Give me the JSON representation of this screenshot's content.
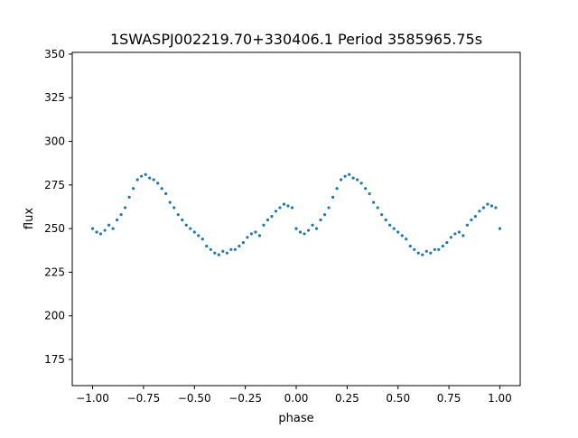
{
  "chart_data": {
    "type": "scatter",
    "title": "1SWASPJ002219.70+330406.1 Period 3585965.75s",
    "xlabel": "phase",
    "ylabel": "flux",
    "xlim": [
      -1.1,
      1.1
    ],
    "ylim": [
      160,
      351
    ],
    "xticks": [
      -1.0,
      -0.75,
      -0.5,
      -0.25,
      0.0,
      0.25,
      0.5,
      0.75,
      1.0
    ],
    "xtick_labels": [
      "−1.00",
      "−0.75",
      "−0.50",
      "−0.25",
      "0.00",
      "0.25",
      "0.50",
      "0.75",
      "1.00"
    ],
    "yticks": [
      175,
      200,
      225,
      250,
      275,
      300,
      325,
      350
    ],
    "ytick_labels": [
      "175",
      "200",
      "225",
      "250",
      "275",
      "300",
      "325",
      "350"
    ],
    "grid": false,
    "legend": "none",
    "point_color": "#1f77b4",
    "series": [
      {
        "phase": [
          0.0,
          0.02,
          0.04,
          0.06,
          0.08,
          0.1,
          0.12,
          0.14,
          0.16,
          0.18,
          0.2,
          0.22,
          0.24,
          0.26,
          0.28,
          0.3,
          0.32,
          0.34,
          0.36,
          0.38,
          0.4,
          0.42,
          0.44,
          0.46,
          0.48,
          0.5,
          0.52,
          0.54,
          0.56,
          0.58,
          0.6,
          0.62,
          0.64,
          0.66,
          0.68,
          0.7,
          0.72,
          0.74,
          0.76,
          0.78,
          0.8,
          0.82,
          0.84,
          0.86,
          0.88,
          0.9,
          0.92,
          0.94,
          0.96,
          0.98,
          1.0
        ],
        "flux": [
          250,
          248,
          247,
          249,
          252,
          250,
          255,
          258,
          262,
          268,
          273,
          278,
          280,
          281,
          279,
          278,
          276,
          273,
          270,
          265,
          262,
          258,
          255,
          252,
          250,
          248,
          246,
          244,
          240,
          238,
          236,
          235,
          237,
          236,
          238,
          238,
          240,
          242,
          245,
          247,
          248,
          246,
          252,
          255,
          257,
          260,
          262,
          264,
          263,
          262,
          250
        ]
      }
    ]
  }
}
